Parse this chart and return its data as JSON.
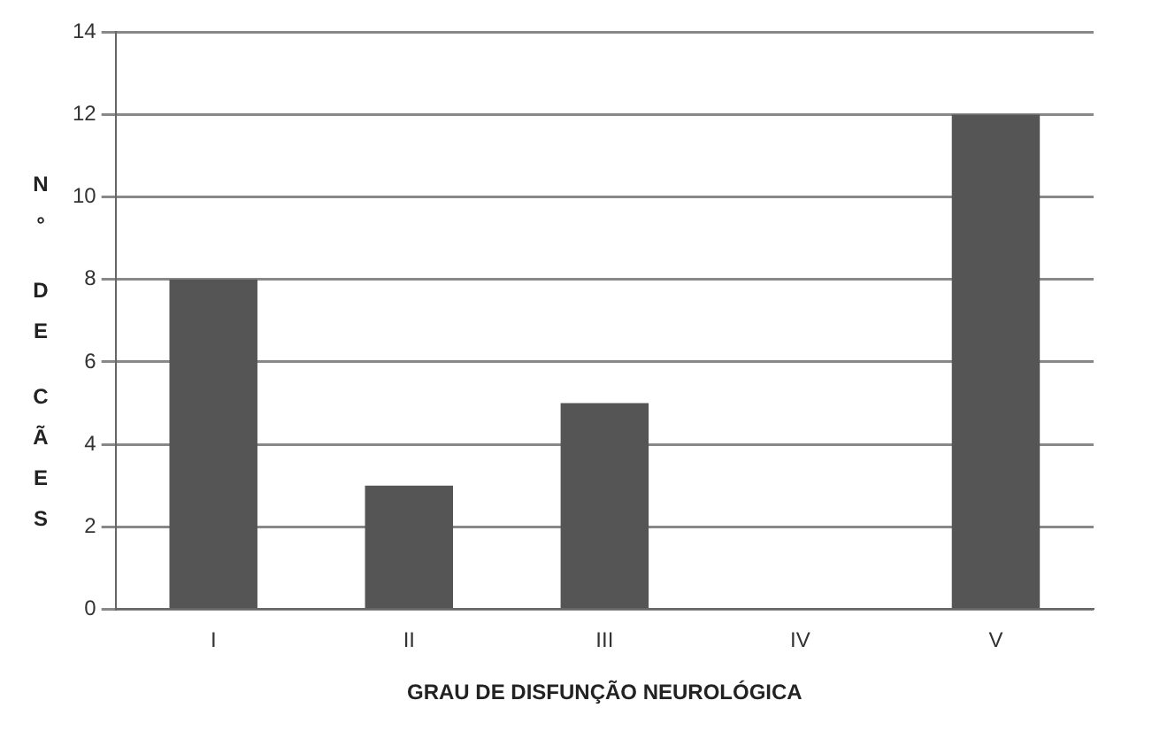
{
  "chart_data": {
    "type": "bar",
    "xlabel": "GRAU DE DISFUNÇÃO NEUROLÓGICA",
    "ylabel": "N° DE CÃES",
    "categories": [
      "I",
      "II",
      "III",
      "IV",
      "V"
    ],
    "values": [
      8,
      3,
      5,
      0,
      12
    ],
    "color": "#555555",
    "ylim": [
      0,
      14
    ],
    "yticks": [
      0,
      2,
      4,
      6,
      8,
      10,
      12,
      14
    ],
    "grid": "y",
    "legend": false
  }
}
